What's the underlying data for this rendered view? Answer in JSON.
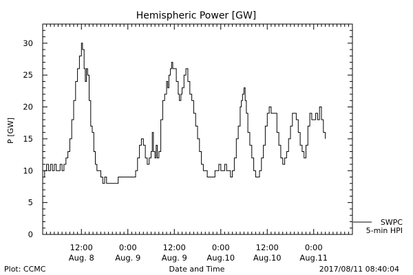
{
  "chart_data": {
    "type": "line",
    "title": "Hemispheric Power [GW]",
    "xlabel": "Date and Time",
    "ylabel": "P [GW]",
    "xlim": [
      0,
      80
    ],
    "ylim": [
      0,
      33
    ],
    "yticks": [
      0,
      5,
      10,
      15,
      20,
      25,
      30
    ],
    "yminor_step": 1,
    "xticks": [
      {
        "x": 10,
        "line1": "12:00",
        "line2": "Aug. 8"
      },
      {
        "x": 22,
        "line1": "0:00",
        "line2": "Aug. 9"
      },
      {
        "x": 34,
        "line1": "12:00",
        "line2": "Aug. 9"
      },
      {
        "x": 46,
        "line1": "0:00",
        "line2": "Aug.10"
      },
      {
        "x": 58,
        "line1": "12:00",
        "line2": "Aug.10"
      },
      {
        "x": 70,
        "line1": "0:00",
        "line2": "Aug.11"
      }
    ],
    "xminor_step": 1,
    "legend": {
      "line1": "SWPC",
      "line2": "5-min HPI",
      "position": "bottom-right-outside"
    },
    "series": [
      {
        "name": "5-min HPI",
        "color": "#000000",
        "points": [
          [
            0.0,
            9
          ],
          [
            0.5,
            10
          ],
          [
            1.0,
            11
          ],
          [
            1.5,
            10
          ],
          [
            2.0,
            11
          ],
          [
            2.5,
            10
          ],
          [
            3.0,
            11
          ],
          [
            3.5,
            10
          ],
          [
            4.0,
            10
          ],
          [
            4.5,
            11
          ],
          [
            5.0,
            10
          ],
          [
            5.5,
            11
          ],
          [
            6.0,
            12
          ],
          [
            6.5,
            13
          ],
          [
            7.0,
            15
          ],
          [
            7.5,
            18
          ],
          [
            8.0,
            21
          ],
          [
            8.5,
            24
          ],
          [
            9.0,
            26
          ],
          [
            9.5,
            28
          ],
          [
            10.0,
            30
          ],
          [
            10.3,
            29
          ],
          [
            10.7,
            26
          ],
          [
            11.0,
            24
          ],
          [
            11.3,
            26
          ],
          [
            11.6,
            25
          ],
          [
            12.0,
            21
          ],
          [
            12.4,
            17
          ],
          [
            12.8,
            16
          ],
          [
            13.2,
            13
          ],
          [
            13.6,
            11
          ],
          [
            14.0,
            10
          ],
          [
            14.5,
            10
          ],
          [
            15.0,
            9
          ],
          [
            15.5,
            8
          ],
          [
            16.0,
            9
          ],
          [
            16.5,
            8
          ],
          [
            17.0,
            8
          ],
          [
            18.0,
            8
          ],
          [
            19.0,
            8
          ],
          [
            19.5,
            9
          ],
          [
            20.0,
            9
          ],
          [
            21.0,
            9
          ],
          [
            22.0,
            9
          ],
          [
            23.0,
            9
          ],
          [
            24.0,
            10
          ],
          [
            24.5,
            12
          ],
          [
            25.0,
            14
          ],
          [
            25.5,
            15
          ],
          [
            26.0,
            14
          ],
          [
            26.5,
            12
          ],
          [
            27.0,
            11
          ],
          [
            27.5,
            12
          ],
          [
            28.0,
            13
          ],
          [
            28.3,
            16
          ],
          [
            28.6,
            13
          ],
          [
            29.0,
            12
          ],
          [
            29.3,
            14
          ],
          [
            29.6,
            12
          ],
          [
            30.0,
            13
          ],
          [
            30.5,
            18
          ],
          [
            31.0,
            21
          ],
          [
            31.5,
            22
          ],
          [
            32.0,
            24
          ],
          [
            32.3,
            23
          ],
          [
            32.6,
            25
          ],
          [
            33.0,
            26
          ],
          [
            33.3,
            27
          ],
          [
            33.6,
            26
          ],
          [
            34.0,
            26
          ],
          [
            34.5,
            24
          ],
          [
            35.0,
            22
          ],
          [
            35.3,
            21
          ],
          [
            35.7,
            22
          ],
          [
            36.0,
            23
          ],
          [
            36.5,
            25
          ],
          [
            37.0,
            26
          ],
          [
            37.5,
            24
          ],
          [
            38.0,
            22
          ],
          [
            38.5,
            21
          ],
          [
            39.0,
            19
          ],
          [
            39.5,
            17
          ],
          [
            40.0,
            15
          ],
          [
            40.5,
            13
          ],
          [
            41.0,
            11
          ],
          [
            41.5,
            10
          ],
          [
            42.0,
            10
          ],
          [
            42.5,
            9
          ],
          [
            43.0,
            9
          ],
          [
            44.0,
            9
          ],
          [
            44.5,
            10
          ],
          [
            45.0,
            10
          ],
          [
            45.5,
            11
          ],
          [
            46.0,
            10
          ],
          [
            46.5,
            10
          ],
          [
            47.0,
            11
          ],
          [
            47.5,
            10
          ],
          [
            48.0,
            10
          ],
          [
            48.5,
            9
          ],
          [
            49.0,
            10
          ],
          [
            49.5,
            12
          ],
          [
            50.0,
            15
          ],
          [
            50.5,
            17
          ],
          [
            51.0,
            20
          ],
          [
            51.3,
            21
          ],
          [
            51.6,
            22
          ],
          [
            52.0,
            23
          ],
          [
            52.3,
            21
          ],
          [
            52.6,
            19
          ],
          [
            53.0,
            16
          ],
          [
            53.5,
            14
          ],
          [
            54.0,
            12
          ],
          [
            54.5,
            10
          ],
          [
            55.0,
            9
          ],
          [
            55.5,
            9
          ],
          [
            56.0,
            10
          ],
          [
            56.5,
            12
          ],
          [
            57.0,
            14
          ],
          [
            57.5,
            17
          ],
          [
            58.0,
            19
          ],
          [
            58.5,
            20
          ],
          [
            59.0,
            19
          ],
          [
            59.5,
            19
          ],
          [
            60.0,
            19
          ],
          [
            60.5,
            16
          ],
          [
            61.0,
            14
          ],
          [
            61.5,
            12
          ],
          [
            62.0,
            11
          ],
          [
            62.5,
            12
          ],
          [
            63.0,
            13
          ],
          [
            63.5,
            15
          ],
          [
            64.0,
            17
          ],
          [
            64.5,
            19
          ],
          [
            65.0,
            19
          ],
          [
            65.5,
            18
          ],
          [
            66.0,
            16
          ],
          [
            66.5,
            14
          ],
          [
            67.0,
            13
          ],
          [
            67.5,
            12
          ],
          [
            68.0,
            14
          ],
          [
            68.5,
            17
          ],
          [
            69.0,
            19
          ],
          [
            69.5,
            18
          ],
          [
            70.0,
            18
          ],
          [
            70.5,
            19
          ],
          [
            71.0,
            18
          ],
          [
            71.5,
            20
          ],
          [
            72.0,
            18
          ],
          [
            72.5,
            16
          ],
          [
            73.0,
            15
          ]
        ]
      }
    ]
  },
  "footer": {
    "plot_credit": "Plot: CCMC",
    "timestamp": "2017/08/11 08:40:04"
  }
}
